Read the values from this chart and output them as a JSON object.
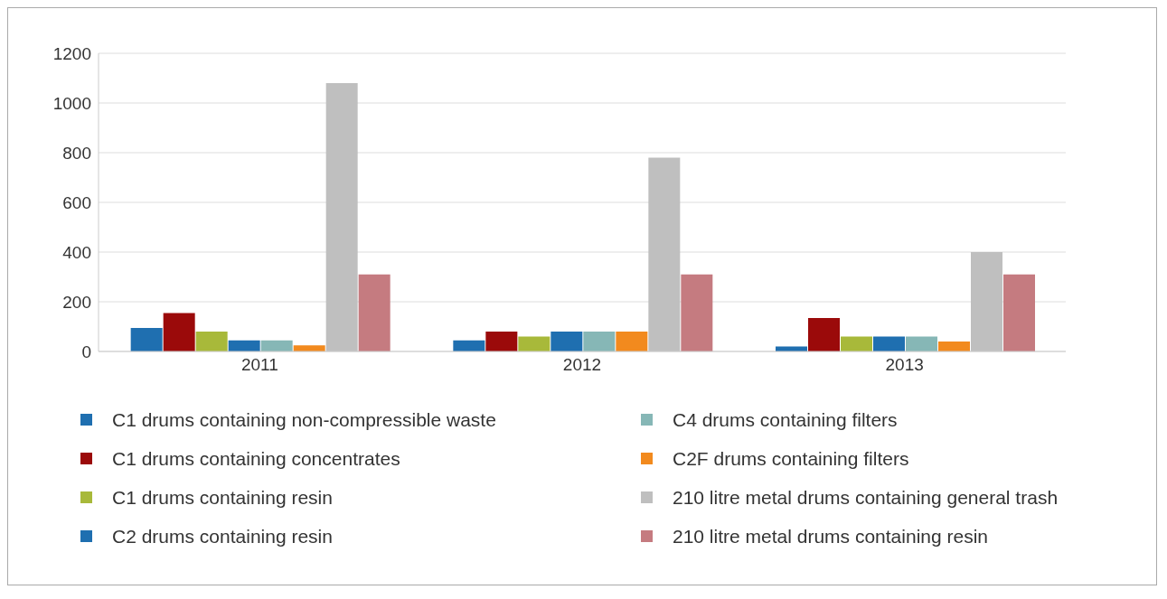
{
  "chart_data": {
    "type": "bar",
    "categories": [
      "2011",
      "2012",
      "2013"
    ],
    "series": [
      {
        "name": "C1 drums containing non-compressible waste",
        "color": "#1f6fb0",
        "values": [
          95,
          45,
          20
        ]
      },
      {
        "name": "C1 drums containing concentrates",
        "color": "#9b0a0a",
        "values": [
          155,
          80,
          135
        ]
      },
      {
        "name": "C1 drums containing resin",
        "color": "#a8b93a",
        "values": [
          80,
          60,
          60
        ]
      },
      {
        "name": "C2 drums containing resin",
        "color": "#1f6fb0",
        "values": [
          45,
          80,
          60
        ]
      },
      {
        "name": "C4 drums containing filters",
        "color": "#86b7b6",
        "values": [
          45,
          80,
          60
        ]
      },
      {
        "name": "C2F drums containing filters",
        "color": "#f28a1e",
        "values": [
          25,
          80,
          40
        ]
      },
      {
        "name": "210 litre metal drums containing general trash",
        "color": "#bfbfbf",
        "values": [
          1080,
          780,
          400
        ]
      },
      {
        "name": "210 litre metal drums containing resin",
        "color": "#c57b80",
        "values": [
          310,
          310,
          310
        ]
      }
    ],
    "ylim": [
      0,
      1200
    ],
    "yticks": [
      0,
      200,
      400,
      600,
      800,
      1000,
      1200
    ],
    "grid": "y",
    "legend": "bottom"
  }
}
